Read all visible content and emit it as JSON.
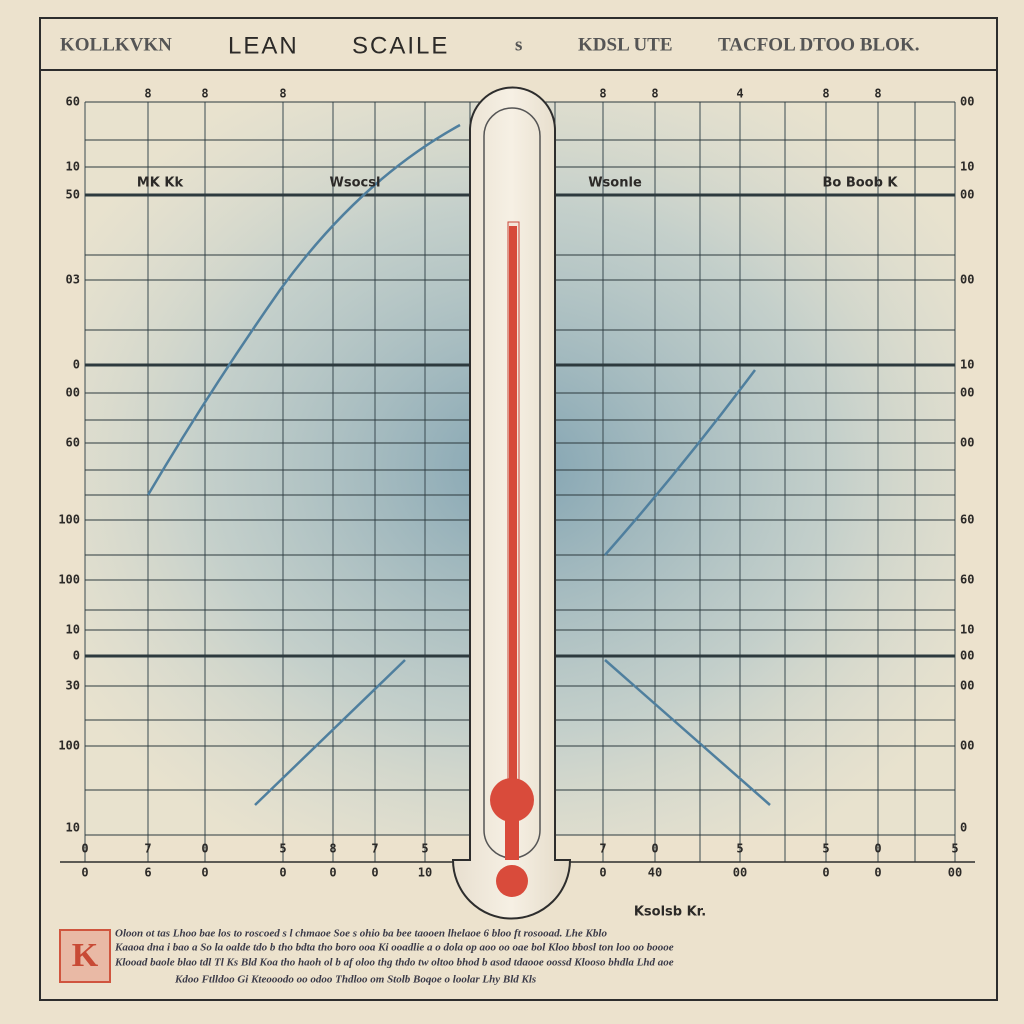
{
  "header": {
    "left": "KOLLKVKN",
    "title_1": "LEAN",
    "title_2": "SCAILE",
    "mark": "s",
    "right_1": "KDSL UTE",
    "right_2": "TACFOL DTOO BLOK."
  },
  "top_axis": [
    "8",
    "8",
    "8",
    "8",
    "8",
    "4",
    "8",
    "8"
  ],
  "left_axis": [
    "60",
    "10",
    "50",
    "03",
    "0",
    "00",
    "60",
    "100",
    "100",
    "10",
    "0",
    "30",
    "100",
    "10"
  ],
  "right_axis": [
    "00",
    "10",
    "00",
    "00",
    "10",
    "00",
    "00",
    "60",
    "60",
    "10",
    "00",
    "00",
    "00",
    "0"
  ],
  "bottom_axis_1": [
    "0",
    "7",
    "0",
    "5",
    "8",
    "7",
    "5",
    "7",
    "0",
    "5",
    "5",
    "0",
    "5"
  ],
  "bottom_axis_2": [
    "0",
    "6",
    "0",
    "0",
    "0",
    "0",
    "10",
    "0",
    "40",
    "00",
    "0",
    "0",
    "00"
  ],
  "panel_labels": [
    "MK Kk",
    "Wsocsl",
    "Wsonle",
    "Bo Boob K"
  ],
  "caption": "Ksolsb Kr.",
  "stamp": "K",
  "footer": [
    "Oloon ot tas Lhoo bae los to roscoed s l chmaoe  Soe s ohio ba bee taooen lhelaoe 6 bloo  ft rosooad. Lhe Kblo",
    "Kaaoa dna i bao a So la oalde tdo b tho  bdta tho boro ooa  Ki ooadlie a o dola op aoo oo oae bol Kloo bbosl ton loo oo boooe",
    "Klooad baole blao tdl Tl Ks Bld Koa tho haoh ol b af oloo thg thdo tw oltoo bhod b asod tdaooe oossd Klooso bhdla Lhd aoe",
    "Kdoo Ftlldoo  Gi  Kteooodo oo odoo   Thdloo om Stolb  Boqoe o loolar Lhy   Bld Kls"
  ]
}
